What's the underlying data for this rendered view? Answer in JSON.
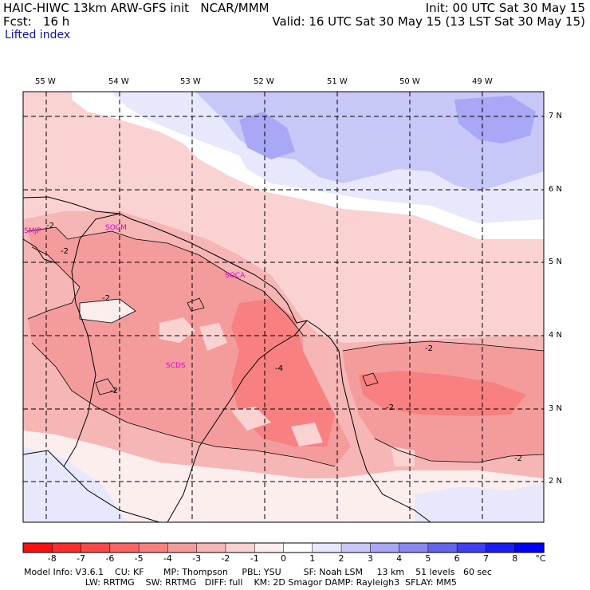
{
  "header": {
    "model_line": "HAIC-HIWC 13km ARW-GFS init   NCAR/MMM",
    "init": "Init: 00 UTC Sat 30 May 15",
    "fcst": "Fcst:   16 h",
    "valid": "Valid: 16 UTC Sat 30 May 15 (13 LST Sat 30 May 15)",
    "field": "Lifted index"
  },
  "lon_ticks": [
    "55 W",
    "54 W",
    "53 W",
    "52 W",
    "51 W",
    "50 W",
    "49 W"
  ],
  "lat_ticks": [
    "7 N",
    "6 N",
    "5 N",
    "4 N",
    "3 N",
    "2 N"
  ],
  "stations": [
    "SMJP",
    "SOCM",
    "SOCA",
    "SCDS"
  ],
  "contour_labels": [
    "-2",
    "-2",
    "-2",
    "-2",
    "-2",
    "-2",
    "-2",
    "-4"
  ],
  "colorbar": {
    "labels": [
      "-8",
      "-7",
      "-6",
      "-5",
      "-4",
      "-3",
      "-2",
      "-1",
      "0",
      "1",
      "2",
      "3",
      "4",
      "5",
      "6",
      "7",
      "8"
    ],
    "unit": "°C",
    "colors": [
      "#ff1010",
      "#ff2c2c",
      "#ff4848",
      "#ff6464",
      "#f88080",
      "#f49c9c",
      "#f6b6b6",
      "#fad2d2",
      "#fdeeee",
      "#ffffff",
      "#e8e8fc",
      "#c8c8f8",
      "#a8a8f6",
      "#8888f0",
      "#6464ee",
      "#4040f2",
      "#1c1cfa",
      "#0000ff"
    ]
  },
  "footer": {
    "line1": "Model Info: V3.6.1    CU: KF       MP: Thompson     PBL: YSU        SF: Noah LSM     13 km    51 levels   60 sec",
    "line2": "                      LW: RRTMG    SW: RRTMG   DIFF: full    KM: 2D Smagor DAMP: Rayleigh3  SFLAY: MM5"
  }
}
